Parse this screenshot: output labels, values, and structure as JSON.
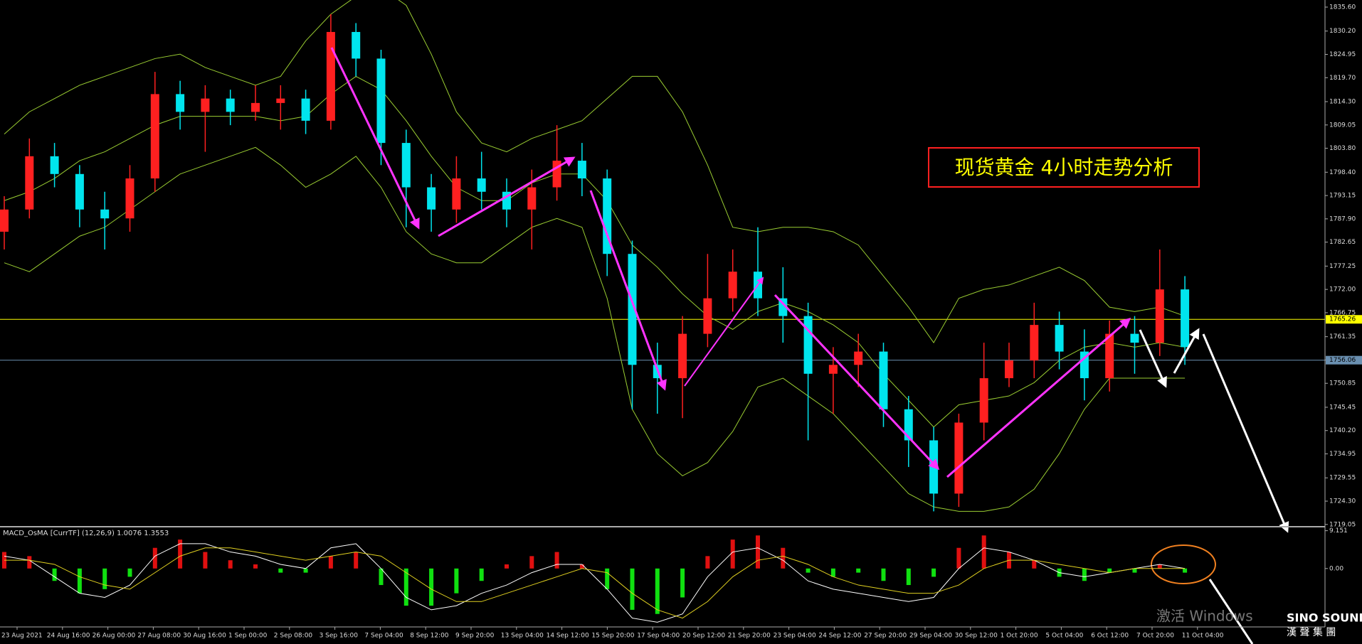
{
  "chart_data": {
    "type": "candlestick",
    "title": "现货黄金 4小时走势分析",
    "up_color": "#ff2020",
    "down_color": "#00e5ee",
    "open": [
      1785,
      1790,
      1802,
      1798,
      1790,
      1788,
      1797,
      1816,
      1812,
      1815,
      1812,
      1814,
      1815,
      1810,
      1830,
      1824,
      1805,
      1795,
      1790,
      1797,
      1794,
      1790,
      1795,
      1801,
      1797,
      1780,
      1755,
      1752,
      1762,
      1770,
      1776,
      1770,
      1766,
      1753,
      1755,
      1758,
      1745,
      1738,
      1726,
      1742,
      1752,
      1756,
      1764,
      1758,
      1752,
      1762,
      1760,
      1772
    ],
    "high": [
      1793,
      1806,
      1805,
      1800,
      1794,
      1800,
      1821,
      1819,
      1818,
      1817,
      1818,
      1818,
      1817,
      1834,
      1832,
      1826,
      1808,
      1798,
      1802,
      1803,
      1797,
      1799,
      1809,
      1805,
      1799,
      1783,
      1760,
      1766,
      1780,
      1781,
      1786,
      1777,
      1769,
      1759,
      1762,
      1760,
      1748,
      1741,
      1744,
      1760,
      1760,
      1769,
      1767,
      1763,
      1765,
      1766,
      1781,
      1775
    ],
    "low": [
      1781,
      1788,
      1795,
      1786,
      1781,
      1785,
      1794,
      1808,
      1803,
      1809,
      1810,
      1808,
      1807,
      1808,
      1820,
      1800,
      1786,
      1785,
      1787,
      1790,
      1786,
      1781,
      1792,
      1793,
      1775,
      1745,
      1744,
      1743,
      1759,
      1767,
      1766,
      1760,
      1738,
      1744,
      1750,
      1741,
      1732,
      1722,
      1723,
      1738,
      1750,
      1752,
      1754,
      1747,
      1749,
      1753,
      1757,
      1755
    ],
    "close": [
      1790,
      1802,
      1798,
      1790,
      1788,
      1797,
      1816,
      1812,
      1815,
      1812,
      1814,
      1815,
      1810,
      1830,
      1824,
      1805,
      1795,
      1790,
      1797,
      1794,
      1790,
      1795,
      1801,
      1797,
      1780,
      1755,
      1752,
      1762,
      1770,
      1776,
      1770,
      1766,
      1753,
      1755,
      1758,
      1745,
      1738,
      1726,
      1742,
      1752,
      1756,
      1764,
      1758,
      1752,
      1762,
      1760,
      1772,
      1759
    ],
    "bands": {
      "color": "#9acd32",
      "upper": [
        1807,
        1812,
        1815,
        1818,
        1820,
        1822,
        1824,
        1825,
        1822,
        1820,
        1818,
        1820,
        1828,
        1834,
        1838,
        1840,
        1836,
        1825,
        1812,
        1805,
        1803,
        1806,
        1808,
        1810,
        1815,
        1820,
        1820,
        1812,
        1800,
        1786,
        1785,
        1786,
        1786,
        1785,
        1782,
        1775,
        1768,
        1760,
        1770,
        1772,
        1773,
        1775,
        1777,
        1774,
        1768,
        1767,
        1768,
        1766
      ],
      "middle": [
        1792,
        1794,
        1797,
        1801,
        1803,
        1806,
        1809,
        1811,
        1811,
        1811,
        1811,
        1810,
        1811,
        1816,
        1820,
        1817,
        1810,
        1802,
        1795,
        1792,
        1792,
        1796,
        1798,
        1798,
        1792,
        1782,
        1777,
        1771,
        1766,
        1763,
        1767,
        1769,
        1767,
        1764,
        1760,
        1753,
        1747,
        1741,
        1746,
        1747,
        1748,
        1751,
        1756,
        1759,
        1760,
        1759,
        1760,
        1759
      ],
      "lower": [
        1778,
        1776,
        1780,
        1784,
        1786,
        1790,
        1794,
        1798,
        1800,
        1802,
        1804,
        1800,
        1795,
        1798,
        1802,
        1795,
        1785,
        1780,
        1778,
        1778,
        1782,
        1786,
        1788,
        1786,
        1770,
        1745,
        1735,
        1730,
        1733,
        1740,
        1750,
        1752,
        1748,
        1744,
        1738,
        1732,
        1726,
        1723,
        1722,
        1722,
        1723,
        1727,
        1735,
        1745,
        1752,
        1752,
        1752,
        1752
      ]
    },
    "ylim": [
      1718.7,
      1837.2
    ],
    "yticks": [
      {
        "value": 1835.6,
        "label": "1835.60"
      },
      {
        "value": 1830.2,
        "label": "1830.20"
      },
      {
        "value": 1824.95,
        "label": "1824.95"
      },
      {
        "value": 1819.7,
        "label": "1819.70"
      },
      {
        "value": 1814.3,
        "label": "1814.30"
      },
      {
        "value": 1809.05,
        "label": "1809.05"
      },
      {
        "value": 1803.8,
        "label": "1803.80"
      },
      {
        "value": 1798.4,
        "label": "1798.40"
      },
      {
        "value": 1793.15,
        "label": "1793.15"
      },
      {
        "value": 1787.9,
        "label": "1787.90"
      },
      {
        "value": 1782.65,
        "label": "1782.65"
      },
      {
        "value": 1777.25,
        "label": "1777.25"
      },
      {
        "value": 1772.0,
        "label": "1772.00"
      },
      {
        "value": 1766.75,
        "label": "1766.75"
      },
      {
        "value": 1761.35,
        "label": "1761.35"
      },
      {
        "value": 1756.1,
        "label": "1756.10"
      },
      {
        "value": 1750.85,
        "label": "1750.85"
      },
      {
        "value": 1745.45,
        "label": "1745.45"
      },
      {
        "value": 1740.2,
        "label": "1740.20"
      },
      {
        "value": 1734.95,
        "label": "1734.95"
      },
      {
        "value": 1729.55,
        "label": "1729.55"
      },
      {
        "value": 1724.3,
        "label": "1724.30"
      },
      {
        "value": 1719.05,
        "label": "1719.05"
      }
    ],
    "price_lines": [
      {
        "value": 1765.26,
        "color": "#ffff00"
      },
      {
        "value": 1756.06,
        "color": "#6a8fb0"
      }
    ],
    "xlabels": [
      "23 Aug 2021",
      "24 Aug 16:00",
      "26 Aug 00:00",
      "27 Aug 08:00",
      "30 Aug 16:00",
      "1 Sep 00:00",
      "2 Sep 08:00",
      "3 Sep 16:00",
      "7 Sep 04:00",
      "8 Sep 12:00",
      "9 Sep 20:00",
      "13 Sep 04:00",
      "14 Sep 12:00",
      "15 Sep 20:00",
      "17 Sep 04:00",
      "20 Sep 12:00",
      "21 Sep 20:00",
      "23 Sep 04:00",
      "24 Sep 12:00",
      "27 Sep 20:00",
      "29 Sep 04:00",
      "30 Sep 12:00",
      "1 Oct 20:00",
      "5 Oct 04:00",
      "6 Oct 12:00",
      "7 Oct 20:00",
      "11 Oct 04:00"
    ],
    "macd": {
      "label": "MACD_OsMA [CurrTF] (12,26,9) 1.0076 1.3553",
      "ylim": [
        -13.8,
        9.6
      ],
      "yticks": [
        9.151,
        {
          "value": 0,
          "label": "0.00"
        }
      ],
      "pos_color": "#e01010",
      "neg_color": "#10e010",
      "main_color": "#ffffff",
      "signal_color": "#e0d020",
      "histogram": [
        4,
        3,
        -3,
        -6,
        -5,
        -2,
        5,
        7,
        4,
        2,
        1,
        -1,
        -1,
        3,
        4,
        -4,
        -9,
        -9,
        -6,
        -3,
        1,
        3,
        4,
        1,
        -5,
        -10,
        -11,
        -7,
        3,
        7,
        8,
        5,
        -1,
        -2,
        -1,
        -3,
        -4,
        -2,
        5,
        8,
        4,
        2,
        -2,
        -3,
        -1,
        -1,
        1,
        -1
      ],
      "main": [
        3,
        2,
        -2,
        -6,
        -7,
        -4,
        3,
        6,
        6,
        4,
        3,
        1,
        0,
        5,
        6,
        0,
        -7,
        -10,
        -9,
        -6,
        -4,
        -1,
        1,
        1,
        -5,
        -12,
        -13,
        -11,
        -2,
        4,
        5,
        2,
        -3,
        -5,
        -6,
        -7,
        -8,
        -7,
        0,
        5,
        4,
        2,
        -1,
        -2,
        -1,
        0,
        1,
        0
      ],
      "signal": [
        2,
        2,
        1,
        -2,
        -4,
        -5,
        -1,
        3,
        5,
        5,
        4,
        3,
        2,
        3,
        4,
        3,
        -1,
        -5,
        -8,
        -8,
        -6,
        -4,
        -2,
        0,
        -1,
        -6,
        -10,
        -12,
        -8,
        -2,
        2,
        3,
        1,
        -2,
        -4,
        -5,
        -6,
        -6,
        -4,
        0,
        2,
        2,
        1,
        0,
        -1,
        0,
        0,
        0
      ]
    },
    "watermark": "激活 Windows",
    "brand": "SINO SOUND",
    "brand_sub": "漢 聲 集 團"
  }
}
